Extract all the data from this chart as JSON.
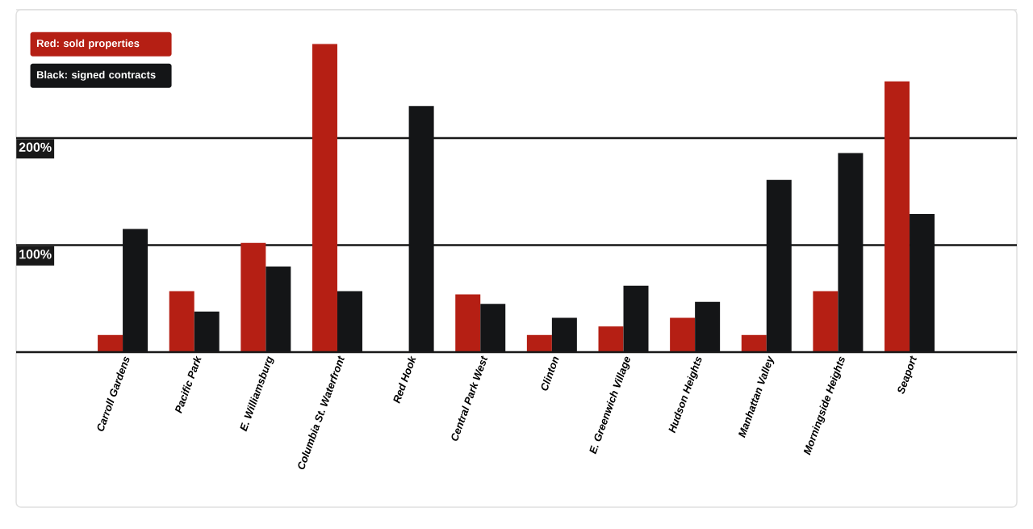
{
  "chart_data": {
    "type": "bar",
    "categories": [
      "Carroll Gardens",
      "Pacific Park",
      "E. Williamsburg",
      "Columbia St. Waterfront",
      "Red Hook",
      "Central Park West",
      "Clinton",
      "E. Greenwich Village",
      "Hudson Heights",
      "Manhattan Valley",
      "Morningside Heights",
      "Seaport"
    ],
    "series": [
      {
        "name": "Red: sold properties",
        "color": "#b51f14",
        "values": [
          16,
          57,
          102,
          288,
          null,
          54,
          16,
          24,
          32,
          16,
          57,
          253
        ]
      },
      {
        "name": "Black: signed contracts",
        "color": "#141517",
        "values": [
          115,
          38,
          80,
          57,
          230,
          45,
          32,
          62,
          47,
          161,
          186,
          129
        ]
      }
    ],
    "ylim": [
      0,
      320
    ],
    "yticks": [
      {
        "value": 100,
        "label": "100%"
      },
      {
        "value": 200,
        "label": "200%"
      }
    ],
    "grid": "y",
    "legend": "top left"
  }
}
